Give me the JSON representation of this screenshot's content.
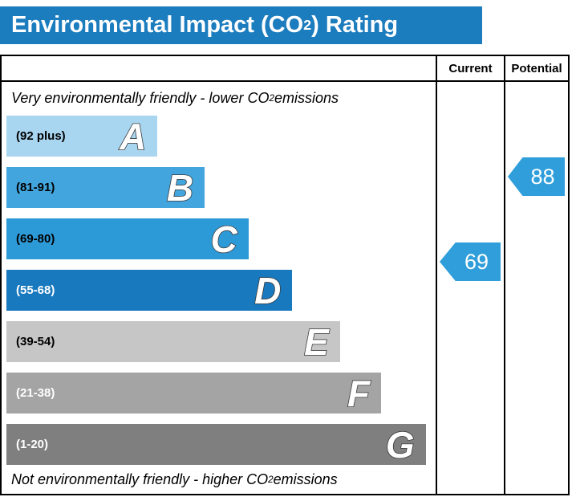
{
  "title": {
    "pre": "Environmental Impact (CO",
    "sub": "2",
    "post": ") Rating"
  },
  "columns": {
    "current": "Current",
    "potential": "Potential"
  },
  "notes": {
    "top_pre": "Very environmentally friendly - lower CO",
    "top_sub": "2",
    "top_post": " emissions",
    "bottom_pre": "Not environmentally friendly - higher CO",
    "bottom_sub": "2",
    "bottom_post": " emissions"
  },
  "bands": [
    {
      "letter": "A",
      "range": "(92 plus)",
      "color": "#a8d5f0",
      "label_color": "#000000"
    },
    {
      "letter": "B",
      "range": "(81-91)",
      "color": "#42a5de",
      "label_color": "#000000"
    },
    {
      "letter": "C",
      "range": "(69-80)",
      "color": "#2d9ad8",
      "label_color": "#000000"
    },
    {
      "letter": "D",
      "range": "(55-68)",
      "color": "#1879be",
      "label_color": "#ffffff"
    },
    {
      "letter": "E",
      "range": "(39-54)",
      "color": "#c6c6c6",
      "label_color": "#000000"
    },
    {
      "letter": "F",
      "range": "(21-38)",
      "color": "#a4a4a4",
      "label_color": "#ffffff"
    },
    {
      "letter": "G",
      "range": "(1-20)",
      "color": "#7f7f7f",
      "label_color": "#ffffff"
    }
  ],
  "current": {
    "value": "69",
    "band": "C",
    "arrow_color": "#2f9eda"
  },
  "potential": {
    "value": "88",
    "band": "B",
    "arrow_color": "#2f9eda"
  },
  "colors": {
    "title_bar": "#1b7cbe",
    "border": "#000000"
  },
  "chart_data": {
    "type": "bar",
    "orientation": "horizontal",
    "title": "Environmental Impact (CO2) Rating",
    "categories": [
      "A",
      "B",
      "C",
      "D",
      "E",
      "F",
      "G"
    ],
    "band_ranges": [
      "92 plus",
      "81-91",
      "69-80",
      "55-68",
      "39-54",
      "21-38",
      "1-20"
    ],
    "band_colors": [
      "#a8d5f0",
      "#42a5de",
      "#2d9ad8",
      "#1879be",
      "#c6c6c6",
      "#a4a4a4",
      "#7f7f7f"
    ],
    "bar_lengths_pct": [
      35,
      46,
      56,
      67,
      78,
      87,
      98
    ],
    "markers": [
      {
        "label": "Current",
        "value": 69,
        "band": "C"
      },
      {
        "label": "Potential",
        "value": 88,
        "band": "B"
      }
    ],
    "annotations": [
      "Very environmentally friendly - lower CO2 emissions",
      "Not environmentally friendly - higher CO2 emissions"
    ],
    "columns": [
      "Current",
      "Potential"
    ],
    "legend_position": "none"
  }
}
